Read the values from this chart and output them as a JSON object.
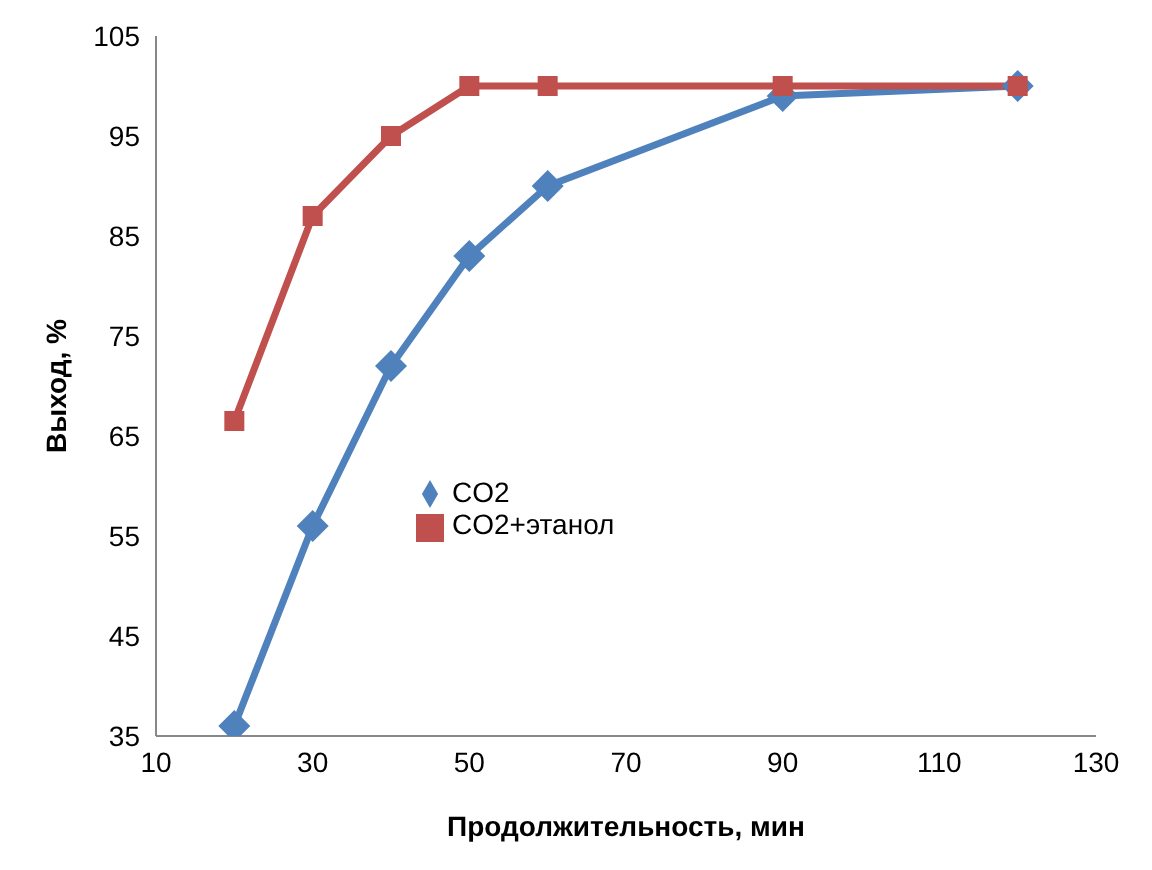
{
  "chart_data": {
    "type": "line",
    "xlabel": "Продолжительность,  мин",
    "ylabel": "Выход, %",
    "x": [
      20,
      30,
      40,
      50,
      60,
      90,
      120
    ],
    "series": [
      {
        "name": "CO2",
        "color": "#4f81bd",
        "marker": "diamond",
        "values": [
          36,
          56,
          72,
          83,
          90,
          99,
          100
        ]
      },
      {
        "name": "CO2+этанол",
        "color": "#c0504d",
        "marker": "square",
        "values": [
          66.5,
          87,
          95,
          100,
          100,
          100,
          100
        ]
      }
    ],
    "xlim": [
      10,
      130
    ],
    "xticks": [
      10,
      30,
      50,
      70,
      90,
      110,
      130
    ],
    "ylim": [
      35,
      105
    ],
    "yticks": [
      35,
      45,
      55,
      65,
      75,
      85,
      95,
      105
    ],
    "grid": false,
    "legend": "left",
    "line_style": "solid"
  }
}
